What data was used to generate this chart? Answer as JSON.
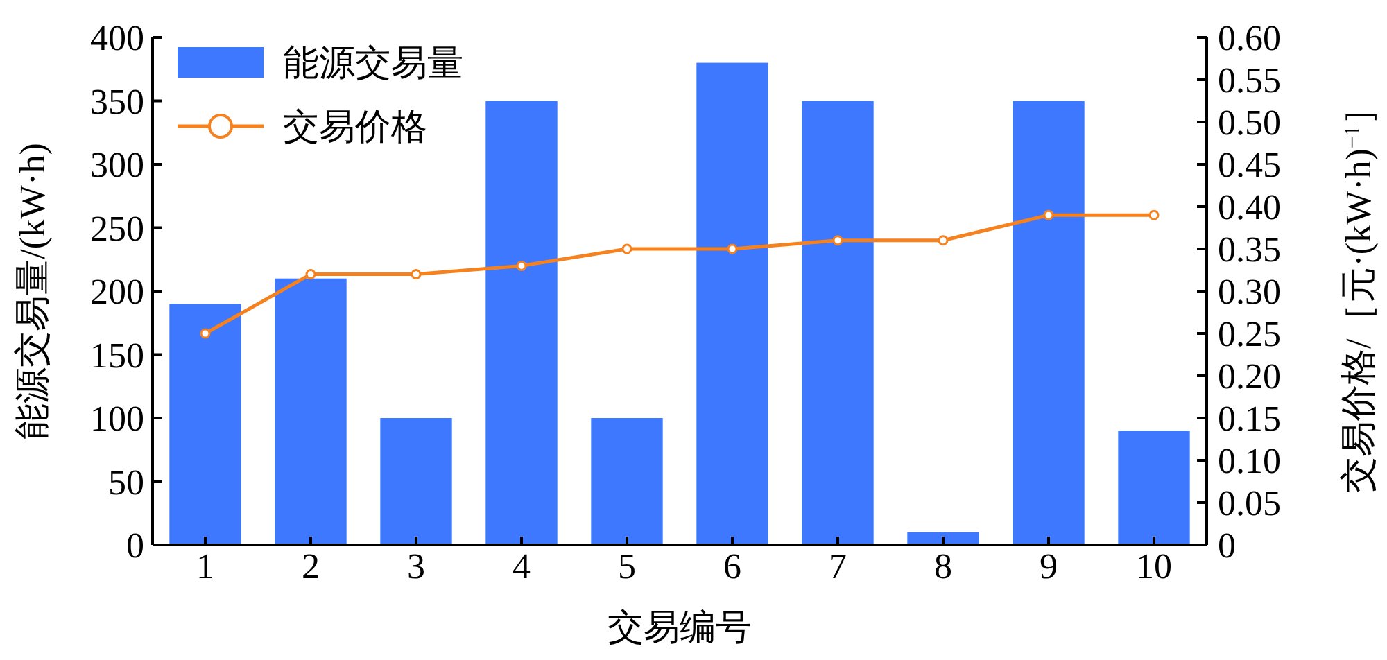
{
  "chart_data": {
    "type": "bar",
    "xlabel": "交易编号",
    "ylabel": "能源交易量/(kW·h)",
    "y2label": "交易价格/［元·(kW·h)$^{−1}$］",
    "categories": [
      "1",
      "2",
      "3",
      "4",
      "5",
      "6",
      "7",
      "8",
      "9",
      "10"
    ],
    "series": [
      {
        "name": "能源交易量",
        "color": "#3d78fe",
        "values": [
          190,
          210,
          100,
          350,
          100,
          380,
          350,
          10,
          350,
          90
        ]
      },
      {
        "name": "交易价格",
        "type": "line",
        "axis": "y2",
        "color": "#f5821f",
        "marker": "circle",
        "values": [
          0.25,
          0.32,
          0.32,
          0.33,
          0.35,
          0.35,
          0.36,
          0.36,
          0.39,
          0.39
        ]
      }
    ],
    "ylim": [
      0,
      400
    ],
    "yticks": [
      0,
      50,
      100,
      150,
      200,
      250,
      300,
      350,
      400
    ],
    "y2lim": [
      0,
      0.6
    ],
    "y2ticks": [
      0,
      {
        "value": 0.05,
        "label": "0.05"
      },
      {
        "value": 0.1,
        "label": "0.10"
      },
      {
        "value": 0.15,
        "label": "0.15"
      },
      {
        "value": 0.2,
        "label": "0.20"
      },
      {
        "value": 0.25,
        "label": "0.25"
      },
      {
        "value": 0.3,
        "label": "0.30"
      },
      {
        "value": 0.35,
        "label": "0.35"
      },
      {
        "value": 0.4,
        "label": "0.40"
      },
      {
        "value": 0.45,
        "label": "0.45"
      },
      {
        "value": 0.5,
        "label": "0.50"
      },
      {
        "value": 0.55,
        "label": "0.55"
      },
      {
        "value": 0.6,
        "label": "0.60"
      }
    ],
    "legend": "top left",
    "grid": false
  }
}
